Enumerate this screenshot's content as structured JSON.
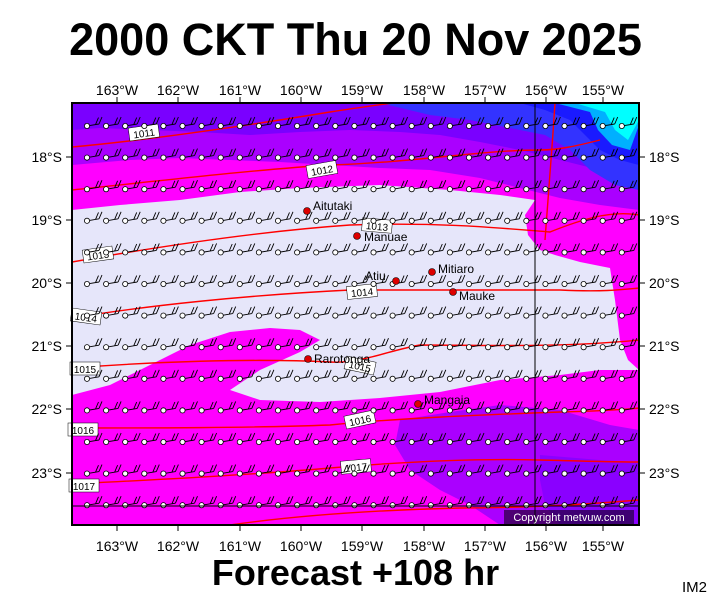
{
  "title": "2000 CKT Thu 20 Nov 2025",
  "footer": "Forecast +108 hr",
  "image_id": "IM2",
  "copyright": "Copyright metvuw.com",
  "map": {
    "lon_labels": [
      "163°W",
      "162°W",
      "161°W",
      "160°W",
      "159°W",
      "158°W",
      "157°W",
      "156°W",
      "155°W"
    ],
    "lat_labels": [
      "18°S",
      "19°S",
      "20°S",
      "21°S",
      "22°S",
      "23°S"
    ],
    "places": [
      {
        "name": "Aitutaki"
      },
      {
        "name": "Manuae"
      },
      {
        "name": "Mitiaro"
      },
      {
        "name": "Atiu"
      },
      {
        "name": "Mauke"
      },
      {
        "name": "Rarotonga"
      },
      {
        "name": "Mangaia"
      }
    ],
    "isobars": [
      "1011",
      "1012",
      "1013",
      "1014",
      "1015",
      "1016",
      "1017"
    ],
    "colors": {
      "pale": "#e6e6fa",
      "magenta": "#ff00ff",
      "violet": "#aa00ff",
      "purple": "#7a00ff",
      "blue": "#3333ff",
      "deep_blue": "#1a1aff",
      "cyan": "#00ffff",
      "isobar": "#ff0000",
      "place_marker": "#dd0000"
    }
  }
}
